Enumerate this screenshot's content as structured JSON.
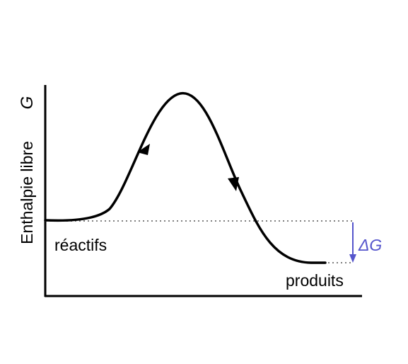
{
  "diagram": {
    "y_axis_label": "Enthalpie libre",
    "y_axis_symbol": "G",
    "reactants_label": "réactifs",
    "products_label": "produits",
    "delta_label": "ΔG",
    "colors": {
      "curve": "#000000",
      "axes": "#000000",
      "dotted_guides": "#7f7f7f",
      "delta_arrow": "#5555cc"
    }
  }
}
